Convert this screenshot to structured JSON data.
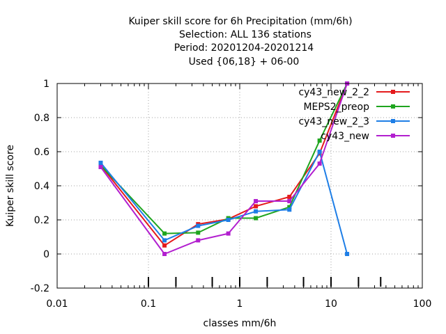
{
  "chart_data": {
    "type": "line",
    "title_lines": [
      "Kuiper skill score  for 6h Precipitation (mm/6h)",
      "Selection: ALL    136 stations",
      "Period: 20201204-20201214",
      "Used {06,18} + 06-00"
    ],
    "xlabel": "classes mm/6h",
    "ylabel": "Kuiper skill score",
    "xscale": "log",
    "xlim": [
      0.01,
      100
    ],
    "ylim": [
      -0.2,
      1.0
    ],
    "xticks": [
      {
        "value": 0.01,
        "label": "0.01"
      },
      {
        "value": 0.1,
        "label": "0.1"
      },
      {
        "value": 1,
        "label": "1"
      },
      {
        "value": 10,
        "label": "10"
      },
      {
        "value": 100,
        "label": "100"
      }
    ],
    "yticks": [
      {
        "value": -0.2,
        "label": "-0.2"
      },
      {
        "value": 0,
        "label": "0"
      },
      {
        "value": 0.2,
        "label": "0.2"
      },
      {
        "value": 0.4,
        "label": "0.4"
      },
      {
        "value": 0.6,
        "label": "0.6"
      },
      {
        "value": 0.8,
        "label": "0.8"
      },
      {
        "value": 1,
        "label": "1"
      }
    ],
    "class_markers": [
      0.1,
      0.2,
      0.5,
      1,
      2,
      5,
      10,
      20,
      35
    ],
    "grid": true,
    "legend_position": "top-right",
    "series": [
      {
        "name": "cy43_new_2_2",
        "color": "#e41a1c",
        "x": [
          0.03,
          0.15,
          0.35,
          0.75,
          1.5,
          3.5,
          7.5,
          15
        ],
        "y": [
          0.52,
          0.05,
          0.175,
          0.205,
          0.28,
          0.335,
          0.59,
          1.0
        ]
      },
      {
        "name": "MEPS2_preop",
        "color": "#1fa51f",
        "x": [
          0.03,
          0.15,
          0.35,
          0.75,
          1.5,
          3.5,
          7.5,
          15
        ],
        "y": [
          0.52,
          0.12,
          0.125,
          0.21,
          0.21,
          0.275,
          0.665,
          1.0
        ]
      },
      {
        "name": "cy43_new_2_3",
        "color": "#1e7ee6",
        "x": [
          0.03,
          0.15,
          0.35,
          0.75,
          1.5,
          3.5,
          7.5,
          15
        ],
        "y": [
          0.535,
          0.08,
          0.165,
          0.2,
          0.25,
          0.26,
          0.6,
          0.0
        ]
      },
      {
        "name": "cy43_new",
        "color": "#b21fcf",
        "x": [
          0.03,
          0.15,
          0.35,
          0.75,
          1.5,
          3.5,
          7.5,
          15
        ],
        "y": [
          0.51,
          0.0,
          0.08,
          0.12,
          0.31,
          0.31,
          0.53,
          1.0
        ]
      }
    ]
  }
}
